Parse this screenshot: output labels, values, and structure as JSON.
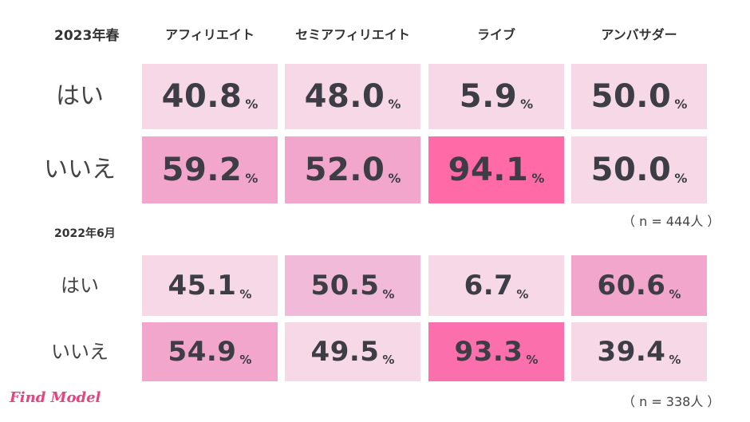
{
  "chart_data": [
    {
      "type": "table",
      "period": "2023年春",
      "columns": [
        "アフィリエイト",
        "セミアフィリエイト",
        "ライブ",
        "アンバサダー"
      ],
      "rows": [
        {
          "label": "はい",
          "values": [
            "40.8",
            "48.0",
            "5.9",
            "50.0"
          ]
        },
        {
          "label": "いいえ",
          "values": [
            "59.2",
            "52.0",
            "94.1",
            "50.0"
          ]
        }
      ],
      "unit": "%",
      "sample_note": "（ n = 444人 ）",
      "cell_colors": [
        [
          "#f7d8e7",
          "#f7d8e7",
          "#f7d8e7",
          "#f7d8e7"
        ],
        [
          "#f3a6cc",
          "#f3a6cc",
          "#ff6aa7",
          "#f7d8e7"
        ]
      ]
    },
    {
      "type": "table",
      "period": "2022年6月",
      "rows": [
        {
          "label": "はい",
          "values": [
            "45.1",
            "50.5",
            "6.7",
            "60.6"
          ]
        },
        {
          "label": "いいえ",
          "values": [
            "54.9",
            "49.5",
            "93.3",
            "39.4"
          ]
        }
      ],
      "unit": "%",
      "sample_note": "（ n = 338人 ）",
      "cell_colors": [
        [
          "#f7d8e7",
          "#f0bad8",
          "#f7d8e7",
          "#f3a6cc"
        ],
        [
          "#f3a6cc",
          "#f7d8e7",
          "#fb70ac",
          "#f7d8e7"
        ]
      ]
    }
  ],
  "logo_text": "Find Model"
}
